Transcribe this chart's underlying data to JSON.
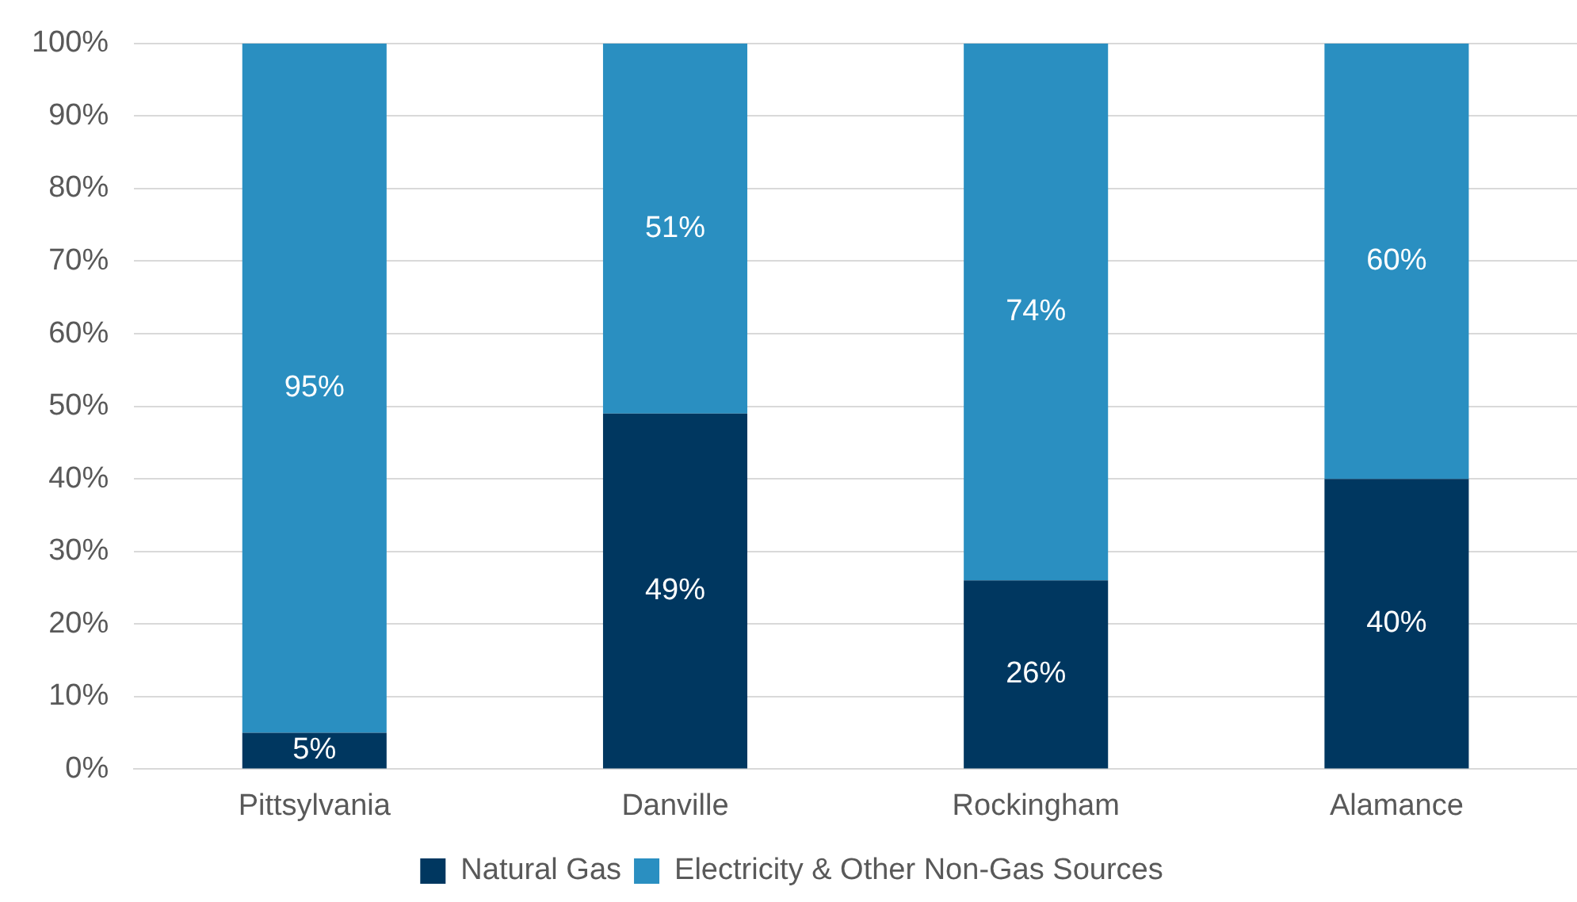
{
  "chart_data": {
    "type": "bar",
    "stacked": true,
    "categories": [
      "Pittsylvania",
      "Danville",
      "Rockingham",
      "Alamance"
    ],
    "series": [
      {
        "name": "Natural Gas",
        "color": "#003760",
        "values": [
          5,
          49,
          26,
          40
        ],
        "value_labels": [
          "5%",
          "49%",
          "26%",
          "40%"
        ]
      },
      {
        "name": "Electricity & Other Non-Gas Sources",
        "color": "#2a8fc1",
        "values": [
          95,
          51,
          74,
          60
        ],
        "value_labels": [
          "95%",
          "51%",
          "74%",
          "60%"
        ]
      }
    ],
    "ylim": [
      0,
      100
    ],
    "yticks": [
      {
        "value": 0,
        "label": "0%"
      },
      {
        "value": 10,
        "label": "10%"
      },
      {
        "value": 20,
        "label": "20%"
      },
      {
        "value": 30,
        "label": "30%"
      },
      {
        "value": 40,
        "label": "40%"
      },
      {
        "value": 50,
        "label": "50%"
      },
      {
        "value": 60,
        "label": "60%"
      },
      {
        "value": 70,
        "label": "70%"
      },
      {
        "value": 80,
        "label": "80%"
      },
      {
        "value": 90,
        "label": "90%"
      },
      {
        "value": 100,
        "label": "100%"
      }
    ],
    "grid": "y",
    "legend": "bottom"
  }
}
